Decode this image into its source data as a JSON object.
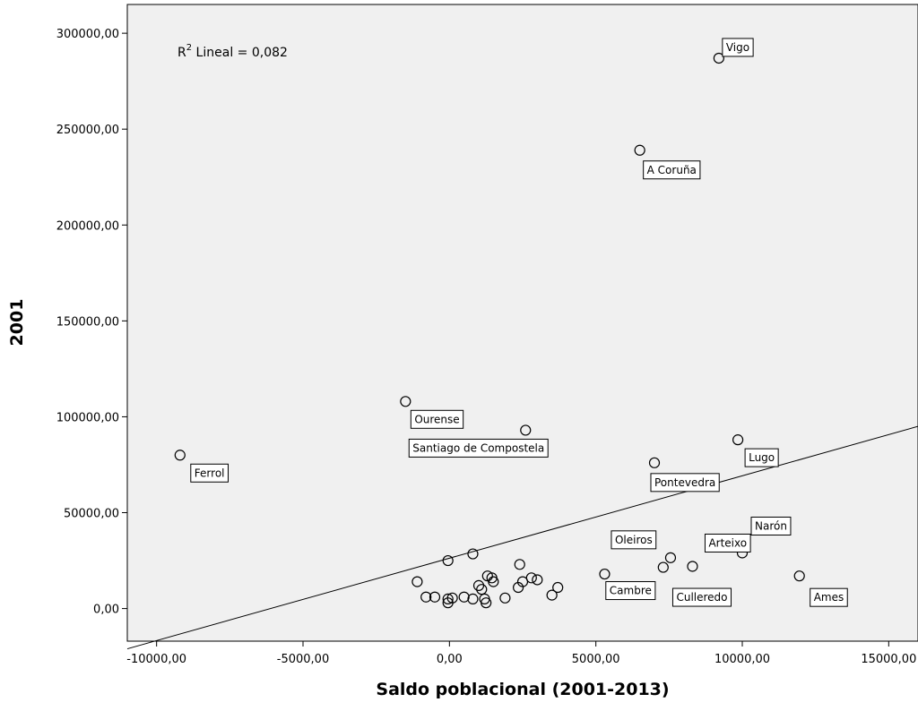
{
  "chart_data": {
    "type": "scatter",
    "xlabel": "Saldo poblacional (2001-2013)",
    "ylabel": "2001",
    "xlim": [
      -11000,
      16000
    ],
    "ylim": [
      -17000,
      315000
    ],
    "x_ticks": [
      -10000,
      -5000,
      0,
      5000,
      10000,
      15000
    ],
    "x_tick_labels": [
      "-10000,00",
      "-5000,00",
      "0,00",
      "5000,00",
      "10000,00",
      "15000,00"
    ],
    "y_ticks": [
      0,
      50000,
      100000,
      150000,
      200000,
      250000,
      300000
    ],
    "y_tick_labels": [
      "0,00",
      "50000,00",
      "100000,00",
      "150000,00",
      "200000,00",
      "250000,00",
      "300000,00"
    ],
    "annotation": {
      "prefix": "R",
      "sup": "2",
      "text": " Lineal = 0,082"
    },
    "fit_line": {
      "x": [
        -11000,
        16000
      ],
      "y": [
        -21000,
        95000
      ]
    },
    "colors": {
      "plot_bg": "#f0f0f0",
      "marker": "#000000",
      "line": "#000000"
    },
    "labeled_points": [
      {
        "label": "Vigo",
        "x": 9200,
        "y": 287000
      },
      {
        "label": "A Coruña",
        "x": 6500,
        "y": 239000
      },
      {
        "label": "Ourense",
        "x": -1500,
        "y": 108000
      },
      {
        "label": "Santiago de Compostela",
        "x": 2600,
        "y": 93000
      },
      {
        "label": "Ferrol",
        "x": -9200,
        "y": 80000
      },
      {
        "label": "Lugo",
        "x": 9850,
        "y": 88000
      },
      {
        "label": "Pontevedra",
        "x": 7000,
        "y": 76000
      },
      {
        "label": "Oleiros",
        "x": 7550,
        "y": 26500
      },
      {
        "label": "Arteixo",
        "x": 8300,
        "y": 22000
      },
      {
        "label": "Narón",
        "x": 10000,
        "y": 29000
      },
      {
        "label": "Cambre",
        "x": 7300,
        "y": 21500
      },
      {
        "label": "Culleredo",
        "x": 5300,
        "y": 18000
      },
      {
        "label": "Ames",
        "x": 11950,
        "y": 17000
      }
    ],
    "points": [
      {
        "x": -1100,
        "y": 14000
      },
      {
        "x": -800,
        "y": 6000
      },
      {
        "x": -500,
        "y": 6000
      },
      {
        "x": -50,
        "y": 25000
      },
      {
        "x": -50,
        "y": 5000
      },
      {
        "x": -50,
        "y": 3000
      },
      {
        "x": 100,
        "y": 5500
      },
      {
        "x": 500,
        "y": 6000
      },
      {
        "x": 800,
        "y": 28500
      },
      {
        "x": 800,
        "y": 5000
      },
      {
        "x": 1000,
        "y": 12000
      },
      {
        "x": 1100,
        "y": 10000
      },
      {
        "x": 1200,
        "y": 5000
      },
      {
        "x": 1250,
        "y": 3000
      },
      {
        "x": 1300,
        "y": 17000
      },
      {
        "x": 1450,
        "y": 16000
      },
      {
        "x": 1500,
        "y": 14000
      },
      {
        "x": 1900,
        "y": 5500
      },
      {
        "x": 2350,
        "y": 11000
      },
      {
        "x": 2400,
        "y": 23000
      },
      {
        "x": 2500,
        "y": 14000
      },
      {
        "x": 2800,
        "y": 16000
      },
      {
        "x": 3000,
        "y": 15000
      },
      {
        "x": 3500,
        "y": 7000
      },
      {
        "x": 3700,
        "y": 11000
      }
    ]
  }
}
